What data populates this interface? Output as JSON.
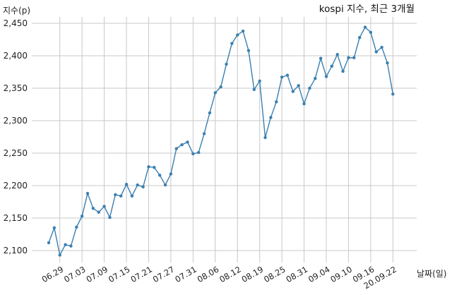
{
  "chart_data": {
    "type": "line",
    "title": "kospi 지수, 최근 3개월",
    "xlabel": "날짜(일)",
    "ylabel": "지수(p)",
    "ylim": [
      2090,
      2460
    ],
    "yticks": [
      2100,
      2150,
      2200,
      2250,
      2300,
      2350,
      2400,
      2450
    ],
    "ytick_labels": [
      "2,100",
      "2,150",
      "2,200",
      "2,250",
      "2,300",
      "2,350",
      "2,400",
      "2,450"
    ],
    "x_tick_labels": [
      "06.29",
      "07.03",
      "07.09",
      "07.15",
      "07.21",
      "07.27",
      "07.31",
      "08.06",
      "08.12",
      "08.19",
      "08.25",
      "08.31",
      "09.04",
      "09.10",
      "09.16",
      "20.09.22"
    ],
    "x_tick_indices": [
      2,
      6,
      10,
      14,
      18,
      22,
      26,
      30,
      34,
      38,
      42,
      46,
      50,
      54,
      58,
      62
    ],
    "grid": true,
    "series": [
      {
        "values": [
          2112,
          2135,
          2093,
          2109,
          2107,
          2136,
          2153,
          2188,
          2165,
          2159,
          2168,
          2151,
          2186,
          2184,
          2202,
          2184,
          2201,
          2198,
          2229,
          2228,
          2216,
          2201,
          2218,
          2257,
          2263,
          2267,
          2249,
          2251,
          2280,
          2312,
          2343,
          2352,
          2387,
          2419,
          2432,
          2438,
          2408,
          2348,
          2361,
          2274,
          2305,
          2329,
          2367,
          2370,
          2345,
          2354,
          2326,
          2350,
          2365,
          2396,
          2368,
          2384,
          2402,
          2376,
          2397,
          2397,
          2428,
          2444,
          2436,
          2406,
          2413,
          2389,
          2341
        ]
      }
    ]
  }
}
